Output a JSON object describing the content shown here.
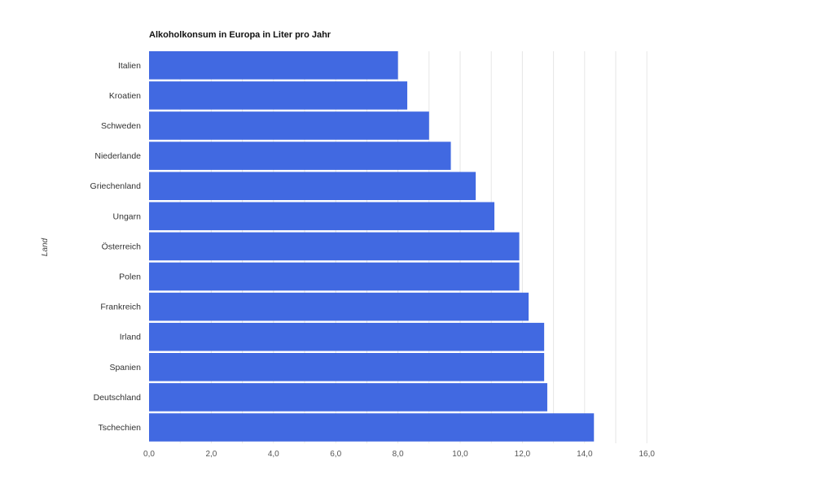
{
  "chart_data": {
    "type": "bar",
    "orientation": "horizontal",
    "title": "Alkoholkonsum in Europa in Liter pro Jahr",
    "xlabel": "",
    "ylabel": "Land",
    "categories": [
      "Italien",
      "Kroatien",
      "Schweden",
      "Niederlande",
      "Griechenland",
      "Ungarn",
      "Österreich",
      "Polen",
      "Frankreich",
      "Irland",
      "Spanien",
      "Deutschland",
      "Tschechien"
    ],
    "values": [
      8.0,
      8.3,
      9.0,
      9.7,
      10.5,
      11.1,
      11.9,
      11.9,
      12.2,
      12.7,
      12.7,
      12.8,
      14.3
    ],
    "xlim": [
      0,
      16
    ],
    "ticks": [
      "0,0",
      "2,0",
      "4,0",
      "6,0",
      "8,0",
      "10,0",
      "12,0",
      "14,0",
      "16,0"
    ],
    "grid": true,
    "bar_color": "#4169e1",
    "grid_color": "#e6e6e6"
  }
}
